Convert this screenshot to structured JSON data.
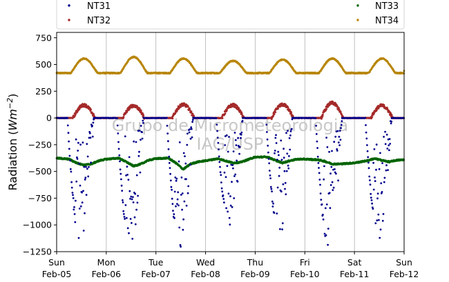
{
  "chart_data": {
    "type": "scatter",
    "title": "",
    "xlabel": "",
    "ylabel_main": "Radiation (",
    "ylabel_unit": "Wm",
    "ylabel_exp": "−2",
    "ylabel_close": ")",
    "ylim": [
      -1250,
      800
    ],
    "xlim": [
      0,
      7
    ],
    "yticks": [
      {
        "value": 750,
        "label": "750"
      },
      {
        "value": 500,
        "label": "500"
      },
      {
        "value": 250,
        "label": "250"
      },
      {
        "value": 0,
        "label": "0"
      },
      {
        "value": -250,
        "label": "−250"
      },
      {
        "value": -500,
        "label": "−500"
      },
      {
        "value": -750,
        "label": "−750"
      },
      {
        "value": -1000,
        "label": "−1000"
      },
      {
        "value": -1250,
        "label": "−1250"
      }
    ],
    "xticks": [
      {
        "value": 0,
        "day": "Sun",
        "date": "Feb-05"
      },
      {
        "value": 1,
        "day": "Mon",
        "date": "Feb-06"
      },
      {
        "value": 2,
        "day": "Tue",
        "date": "Feb-07"
      },
      {
        "value": 3,
        "day": "Wed",
        "date": "Feb-08"
      },
      {
        "value": 4,
        "day": "Thu",
        "date": "Feb-09"
      },
      {
        "value": 5,
        "day": "Fri",
        "date": "Feb-10"
      },
      {
        "value": 6,
        "day": "Sat",
        "date": "Feb-11"
      },
      {
        "value": 7,
        "day": "Sun",
        "date": "Feb-12"
      }
    ],
    "grid": "vertical",
    "legend_placement": "top",
    "watermark_line1": "Grupo de Micrometeorologia",
    "watermark_line2": "IAG/USP",
    "series": [
      {
        "name": "NT31",
        "color": "#00008b",
        "shape": "daily-dip",
        "night_value": 0,
        "daily_minimum": [
          -1220,
          -1240,
          -1250,
          -1060,
          -1120,
          -1240,
          -1140
        ],
        "note_scatter_below_noon": true
      },
      {
        "name": "NT32",
        "color": "#a52a2a",
        "shape": "daily-bump",
        "night_value": 0,
        "daily_peak": [
          120,
          115,
          125,
          120,
          125,
          140,
          115
        ]
      },
      {
        "name": "NT33",
        "color": "#006400",
        "shape": "wavy",
        "values": [
          [
            0.0,
            -375
          ],
          [
            0.25,
            -385
          ],
          [
            0.4,
            -420
          ],
          [
            0.55,
            -440
          ],
          [
            0.7,
            -430
          ],
          [
            0.85,
            -400
          ],
          [
            1.0,
            -385
          ],
          [
            1.25,
            -375
          ],
          [
            1.4,
            -410
          ],
          [
            1.55,
            -450
          ],
          [
            1.7,
            -430
          ],
          [
            1.85,
            -395
          ],
          [
            2.0,
            -380
          ],
          [
            2.25,
            -375
          ],
          [
            2.4,
            -420
          ],
          [
            2.55,
            -480
          ],
          [
            2.7,
            -430
          ],
          [
            2.85,
            -410
          ],
          [
            3.0,
            -400
          ],
          [
            3.25,
            -380
          ],
          [
            3.4,
            -400
          ],
          [
            3.55,
            -420
          ],
          [
            3.7,
            -415
          ],
          [
            3.85,
            -390
          ],
          [
            4.0,
            -365
          ],
          [
            4.25,
            -365
          ],
          [
            4.4,
            -395
          ],
          [
            4.55,
            -420
          ],
          [
            4.7,
            -400
          ],
          [
            4.85,
            -385
          ],
          [
            5.0,
            -385
          ],
          [
            5.25,
            -390
          ],
          [
            5.4,
            -405
          ],
          [
            5.55,
            -430
          ],
          [
            5.7,
            -430
          ],
          [
            5.85,
            -425
          ],
          [
            6.0,
            -420
          ],
          [
            6.25,
            -400
          ],
          [
            6.4,
            -380
          ],
          [
            6.55,
            -395
          ],
          [
            6.7,
            -410
          ],
          [
            6.85,
            -395
          ],
          [
            7.0,
            -390
          ]
        ]
      },
      {
        "name": "NT34",
        "color": "#b8860b",
        "shape": "daily-peak",
        "base_value": 420,
        "daily_peak": [
          555,
          570,
          555,
          535,
          545,
          555,
          555
        ]
      }
    ]
  }
}
